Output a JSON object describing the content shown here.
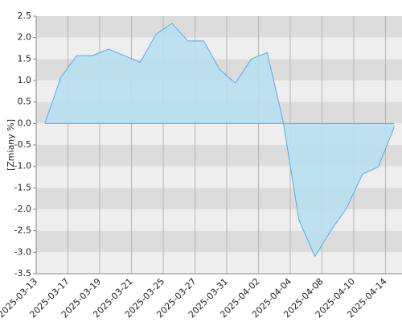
{
  "chart_data": {
    "type": "area",
    "y_label": "[Zmiany %]",
    "categories": [
      "2025-03-13",
      null,
      "2025-03-17",
      null,
      "2025-03-19",
      null,
      "2025-03-21",
      null,
      "2025-03-25",
      null,
      "2025-03-27",
      null,
      "2025-03-31",
      null,
      "2025-04-02",
      null,
      "2025-04-04",
      null,
      "2025-04-08",
      null,
      "2025-04-10",
      null,
      "2025-04-14",
      null
    ],
    "values": [
      null,
      0.0,
      1.07,
      1.58,
      1.58,
      1.73,
      1.58,
      1.42,
      2.08,
      2.33,
      1.92,
      1.92,
      1.26,
      0.94,
      1.5,
      1.65,
      0.05,
      -2.25,
      -3.1,
      -2.5,
      -1.97,
      -1.18,
      -1.01,
      -0.08
    ],
    "color": "#5aa9e6",
    "fill": "#b8dff0",
    "ylim": [
      -3.5,
      2.5
    ],
    "yticks": [
      2.5,
      {
        "value": 2,
        "label": "2.0"
      },
      1.5,
      {
        "value": 1,
        "label": "1.0"
      },
      0.5,
      {
        "value": 0,
        "label": "0.0"
      },
      -0.5,
      {
        "value": -1,
        "label": "-1.0"
      },
      -1.5,
      {
        "value": -2,
        "label": "-2.0"
      },
      -2.5,
      {
        "value": -3,
        "label": "-3.0"
      },
      -3.5
    ],
    "grid": true
  }
}
